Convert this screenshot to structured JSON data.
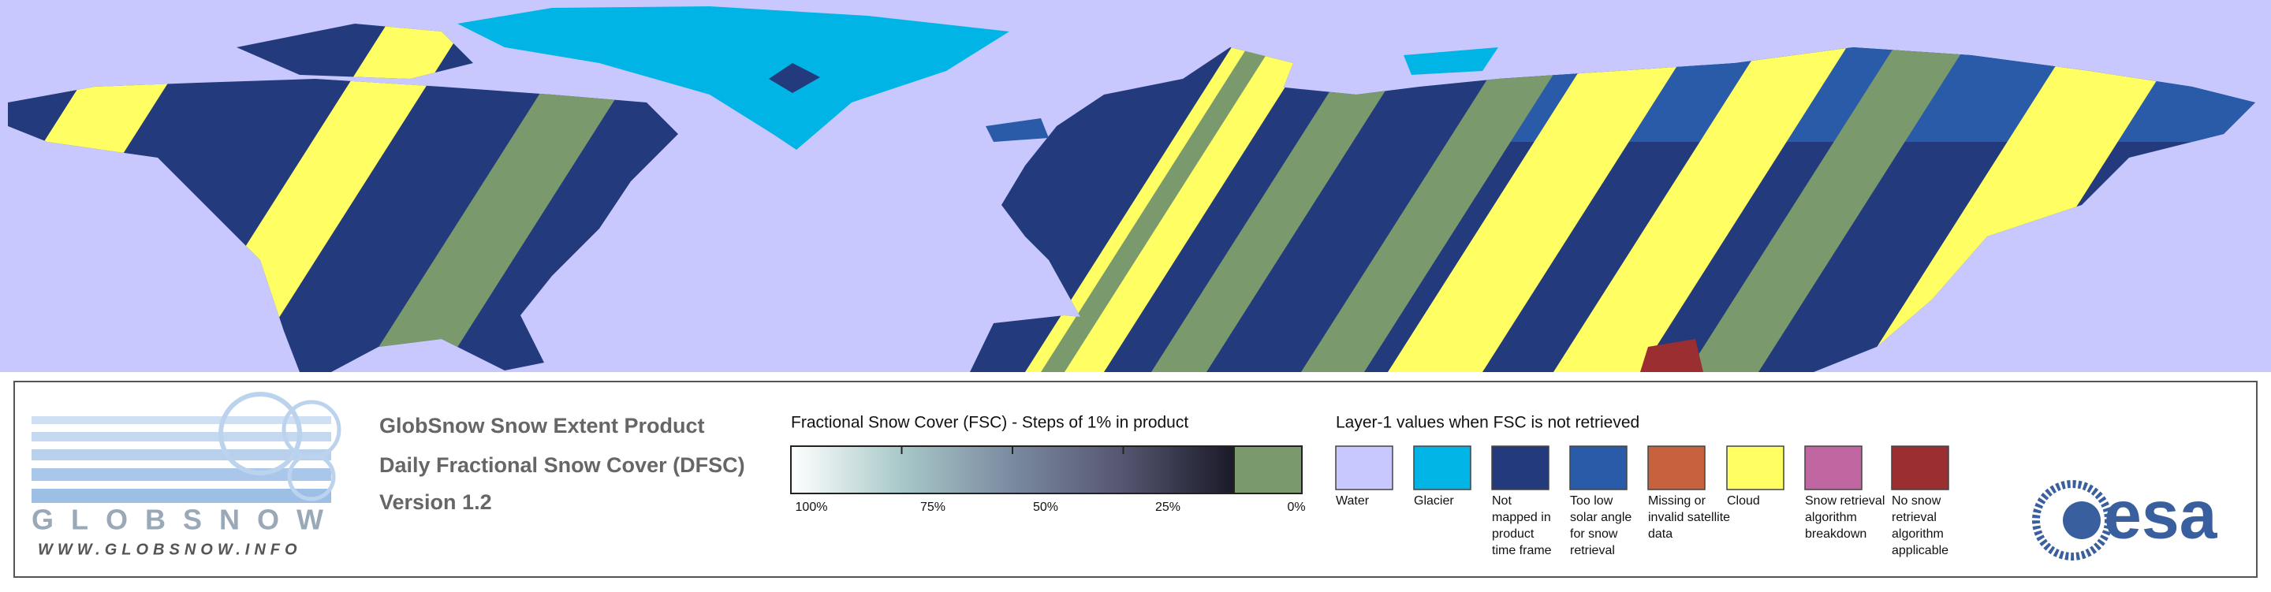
{
  "logo": {
    "name": "GLOBSNOW",
    "url": "WWW.GLOBSNOW.INFO"
  },
  "header": {
    "title": "GlobSnow Snow Extent Product",
    "subtitle": "Daily Fractional Snow Cover (DFSC)",
    "version": "Version 1.2"
  },
  "colorbar": {
    "title": "Fractional Snow Cover (FSC) - Steps of 1% in product",
    "ticks": [
      "100%",
      "75%",
      "50%",
      "25%",
      "0%"
    ]
  },
  "legend": {
    "title": "Layer-1 values when FSC is not retrieved",
    "items": [
      {
        "label": [
          "Water"
        ],
        "color": "#c8c8ff"
      },
      {
        "label": [
          "Glacier"
        ],
        "color": "#00b4e6"
      },
      {
        "label": [
          "Not",
          "mapped in",
          "product",
          "time frame"
        ],
        "color": "#233a7d"
      },
      {
        "label": [
          "Too low",
          "solar angle",
          "for snow",
          "retrieval"
        ],
        "color": "#2a5ba8"
      },
      {
        "label": [
          "Missing or",
          "invalid satellite",
          "data"
        ],
        "color": "#c8623e"
      },
      {
        "label": [
          "Cloud"
        ],
        "color": "#ffff64"
      },
      {
        "label": [
          "Snow retrieval",
          "algorithm",
          "breakdown"
        ],
        "color": "#c066a0"
      },
      {
        "label": [
          "No snow",
          "retrieval",
          "algorithm",
          "applicable"
        ],
        "color": "#9b2e30"
      }
    ]
  },
  "agency": "esa"
}
